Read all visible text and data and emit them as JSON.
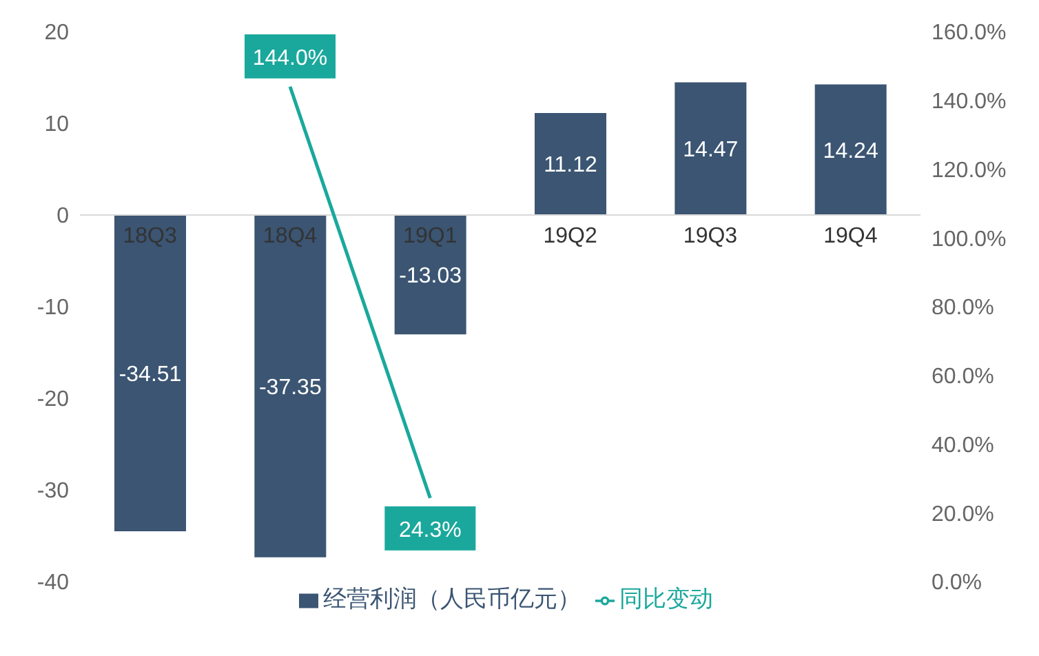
{
  "chart_data": {
    "type": "bar",
    "categories": [
      "18Q3",
      "18Q4",
      "19Q1",
      "19Q2",
      "19Q3",
      "19Q4"
    ],
    "series": [
      {
        "name": "经营利润（人民币亿元）",
        "color": "#3b5573",
        "values": [
          -34.51,
          -37.35,
          -13.03,
          11.12,
          14.47,
          14.24
        ],
        "value_labels": [
          "-34.51",
          "-37.35",
          "-13.03",
          "11.12",
          "14.47",
          "14.24"
        ]
      },
      {
        "name": "同比变动",
        "type": "line",
        "axis": "y2",
        "color": "#1aa89c",
        "values": [
          null,
          144.0,
          24.3,
          null,
          null,
          null
        ],
        "value_labels": [
          null,
          "144.0%",
          "24.3%",
          null,
          null,
          null
        ]
      }
    ],
    "ylim": [
      -40,
      20
    ],
    "yticks": [
      -40,
      -30,
      -20,
      -10,
      0,
      10,
      20
    ],
    "y2lim": [
      0,
      160
    ],
    "y2ticks": [
      {
        "value": 0,
        "label": "0.0%"
      },
      {
        "value": 20,
        "label": "20.0%"
      },
      {
        "value": 40,
        "label": "40.0%"
      },
      {
        "value": 60,
        "label": "60.0%"
      },
      {
        "value": 80,
        "label": "80.0%"
      },
      {
        "value": 100,
        "label": "100.0%"
      },
      {
        "value": 120,
        "label": "120.0%"
      },
      {
        "value": 140,
        "label": "140.0%"
      },
      {
        "value": 160,
        "label": "160.0%"
      }
    ],
    "legend": "bottom",
    "marker": "none",
    "line_style": "solid"
  }
}
